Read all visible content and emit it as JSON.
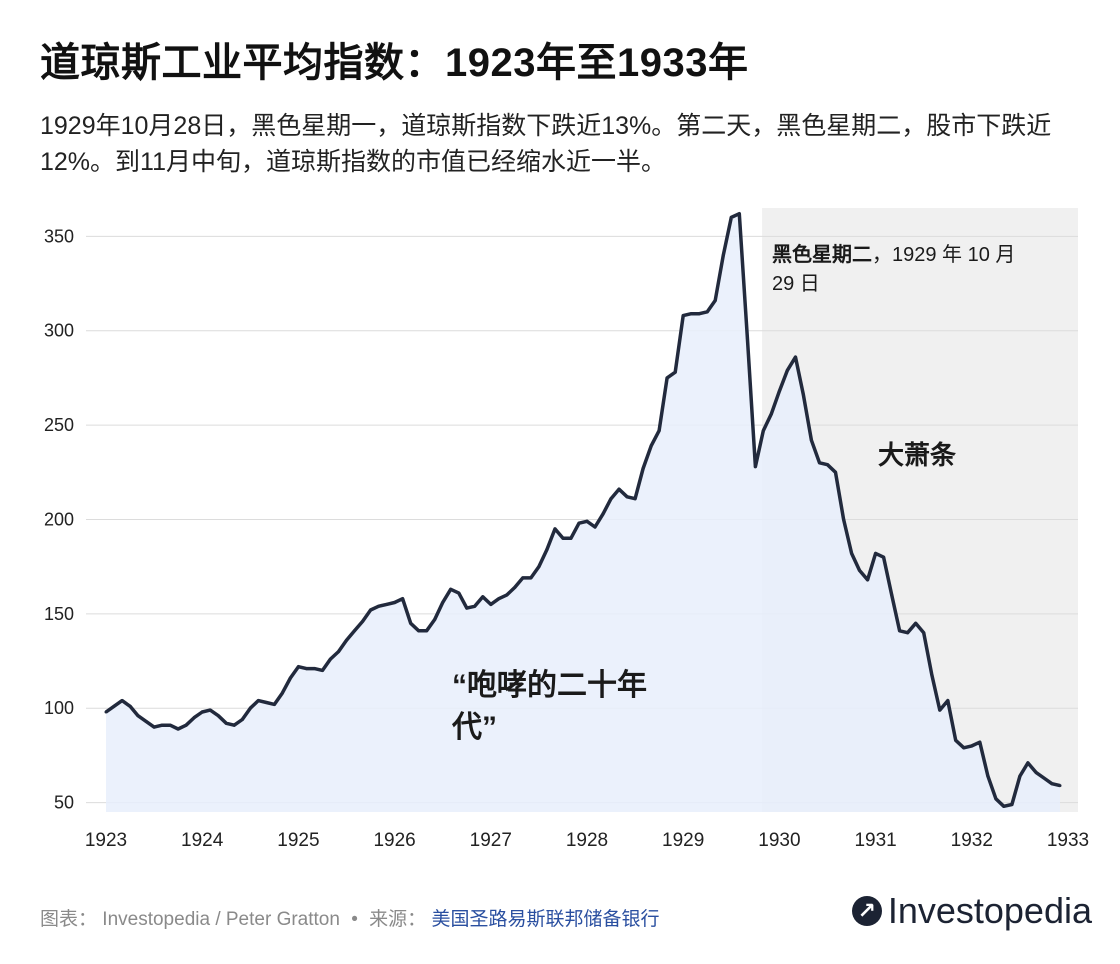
{
  "title": "道琼斯工业平均指数：1923年至1933年",
  "subtitle": "1929年10月28日，黑色星期一，道琼斯指数下跌近13%。第二天，黑色星期二，股市下跌近12%。到11月中旬，道琼斯指数的市值已经缩水近一半。",
  "footer": {
    "chart_label": "图表：",
    "chart_credit": "Investopedia / Peter Gratton",
    "source_label": "来源：",
    "source": "美国圣路易斯联邦储备银行"
  },
  "brand": {
    "name": "Investopedia"
  },
  "colors": {
    "line": "#222a3d",
    "fill": "#e8eefb",
    "shade": "#f0f0f0",
    "grid": "#dcdcdc"
  },
  "chart_data": {
    "type": "area",
    "x": [
      1923.0,
      1923.083,
      1923.167,
      1923.25,
      1923.333,
      1923.417,
      1923.5,
      1923.583,
      1923.667,
      1923.75,
      1923.833,
      1923.917,
      1924.0,
      1924.083,
      1924.167,
      1924.25,
      1924.333,
      1924.417,
      1924.5,
      1924.583,
      1924.667,
      1924.75,
      1924.833,
      1924.917,
      1925.0,
      1925.083,
      1925.167,
      1925.25,
      1925.333,
      1925.417,
      1925.5,
      1925.583,
      1925.667,
      1925.75,
      1925.833,
      1925.917,
      1926.0,
      1926.083,
      1926.167,
      1926.25,
      1926.333,
      1926.417,
      1926.5,
      1926.583,
      1926.667,
      1926.75,
      1926.833,
      1926.917,
      1927.0,
      1927.083,
      1927.167,
      1927.25,
      1927.333,
      1927.417,
      1927.5,
      1927.583,
      1927.667,
      1927.75,
      1927.833,
      1927.917,
      1928.0,
      1928.083,
      1928.167,
      1928.25,
      1928.333,
      1928.417,
      1928.5,
      1928.583,
      1928.667,
      1928.75,
      1928.833,
      1928.917,
      1929.0,
      1929.083,
      1929.167,
      1929.25,
      1929.333,
      1929.417,
      1929.5,
      1929.583,
      1929.667,
      1929.75,
      1929.833,
      1929.917,
      1930.0,
      1930.083,
      1930.167,
      1930.25,
      1930.333,
      1930.417,
      1930.5,
      1930.583,
      1930.667,
      1930.75,
      1930.833,
      1930.917,
      1931.0,
      1931.083,
      1931.167,
      1931.25,
      1931.333,
      1931.417,
      1931.5,
      1931.583,
      1931.667,
      1931.75,
      1931.833,
      1931.917,
      1932.0,
      1932.083,
      1932.167,
      1932.25,
      1932.333,
      1932.417,
      1932.5,
      1932.583,
      1932.667,
      1932.75,
      1932.833,
      1932.917
    ],
    "y": [
      98,
      101,
      104,
      101,
      96,
      93,
      90,
      91,
      91,
      89,
      91,
      95,
      98,
      99,
      96,
      92,
      91,
      94,
      100,
      104,
      103,
      102,
      108,
      116,
      122,
      121,
      121,
      120,
      126,
      130,
      136,
      141,
      146,
      152,
      154,
      155,
      156,
      158,
      145,
      141,
      141,
      147,
      156,
      163,
      161,
      153,
      154,
      159,
      155,
      158,
      160,
      164,
      169,
      169,
      175,
      184,
      195,
      190,
      190,
      198,
      199,
      196,
      203,
      211,
      216,
      212,
      211,
      227,
      239,
      247,
      275,
      278,
      308,
      309,
      309,
      310,
      316,
      340,
      360,
      362,
      296,
      228,
      247,
      256,
      268,
      279,
      286,
      266,
      242,
      230,
      229,
      225,
      200,
      182,
      173,
      168,
      182,
      180,
      160,
      141,
      140,
      145,
      140,
      118,
      99,
      104,
      83,
      79,
      80,
      82,
      64,
      52,
      48,
      49,
      64,
      71,
      66,
      63,
      60,
      59
    ],
    "xlim": [
      1923,
      1933
    ],
    "ylim": [
      45,
      365
    ],
    "yticks": [
      50,
      100,
      150,
      200,
      250,
      300,
      350
    ],
    "xticks": [
      "1923",
      "1924",
      "1925",
      "1926",
      "1927",
      "1928",
      "1929",
      "1930",
      "1931",
      "1932",
      "1933"
    ],
    "shade_start": 1929.82,
    "annotations": {
      "black_tuesday_bold": "黑色星期二",
      "black_tuesday_rest": "，1929 年 10 月",
      "black_tuesday_line2": "29 日",
      "great_depression": "大萧条",
      "roaring_line1": "“咆哮的二十年",
      "roaring_line2": "代”"
    },
    "grid": "horizontal"
  }
}
